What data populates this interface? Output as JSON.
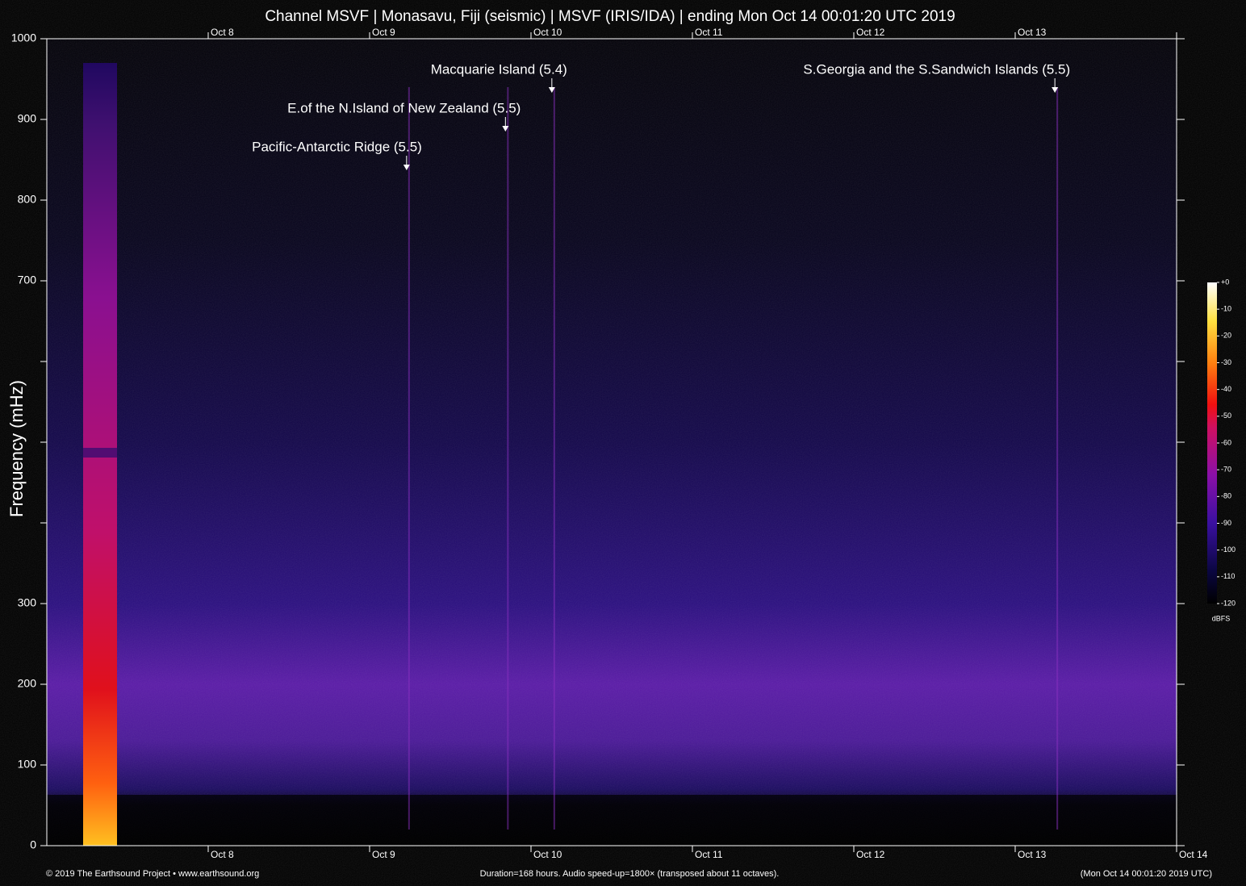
{
  "chart_data": {
    "type": "spectrogram",
    "title": "Channel MSVF | Monasavu, Fiji (seismic) | MSVF (IRIS/IDA) | ending Mon Oct 14 00:01:20 UTC 2019",
    "y_label": "Frequency (mHz)",
    "xlim": [
      0,
      168
    ],
    "xticks": [
      {
        "value": 24,
        "label": "Oct  8"
      },
      {
        "value": 48,
        "label": "Oct  9"
      },
      {
        "value": 72,
        "label": "Oct 10"
      },
      {
        "value": 96,
        "label": "Oct 11"
      },
      {
        "value": 120,
        "label": "Oct 12"
      },
      {
        "value": 144,
        "label": "Oct 13"
      },
      {
        "value": 168,
        "label": "Oct 14"
      }
    ],
    "ylim": [
      0,
      1000
    ],
    "yticks": [
      0,
      100,
      200,
      300,
      700,
      800,
      900,
      1000
    ],
    "minor_yticks": [
      400,
      500,
      600
    ],
    "colorbar": {
      "label": "dBFS",
      "zlim": [
        -120,
        0
      ],
      "ticks": [
        {
          "value": 0,
          "label": "+0"
        },
        -10,
        -20,
        -30,
        -40,
        -50,
        -60,
        -70,
        -80,
        -90,
        -100,
        -110,
        -120
      ]
    },
    "events": [
      {
        "label": "Pacific-Antarctic Ridge (5.5)",
        "x": 53.5
      },
      {
        "label": "E.of the N.Island of New Zealand (5.5)",
        "x": 68.2
      },
      {
        "label": "Macquarie Island (5.4)",
        "x": 75.1
      },
      {
        "label": "S.Georgia and the S.Sandwich Islands (5.5)",
        "x": 149.9
      }
    ],
    "footer_left": "© 2019 The Earthsound Project • www.earthsound.org",
    "footer_center": "Duration=168 hours. Audio speed-up=1800× (transposed about 11 octaves).",
    "footer_right": "(Mon Oct 14 00:01:20 2019 UTC)"
  }
}
